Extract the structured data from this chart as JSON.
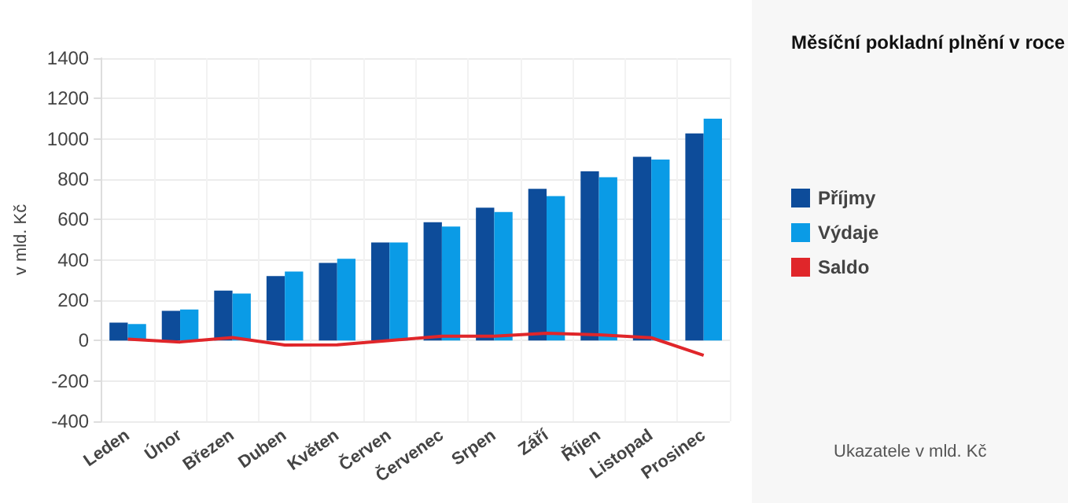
{
  "chart_data": {
    "type": "bar",
    "title": "Měsíční pokladní plnění v roce",
    "ylabel": "v mld. Kč",
    "annotations": [
      "Ukazatele v mld. Kč"
    ],
    "categories": [
      "Leden",
      "Únor",
      "Březen",
      "Duben",
      "Květen",
      "Červen",
      "Červenec",
      "Srpen",
      "Září",
      "Říjen",
      "Listopad",
      "Prosinec"
    ],
    "series": [
      {
        "name": "Příjmy",
        "color": "#0d4c9a",
        "values": [
          89,
          147,
          248,
          320,
          385,
          486,
          587,
          659,
          752,
          839,
          911,
          1027
        ]
      },
      {
        "name": "Výdaje",
        "color": "#0a9be6",
        "values": [
          82,
          154,
          233,
          342,
          406,
          486,
          565,
          637,
          716,
          810,
          897,
          1100
        ]
      },
      {
        "name": "Saldo",
        "type": "line",
        "color": "#e0262a",
        "values": [
          7,
          -7,
          15,
          -22,
          -21,
          0,
          22,
          22,
          36,
          29,
          14,
          -73
        ]
      }
    ],
    "ylim": [
      -400,
      1400
    ],
    "yticks": [
      -400,
      -200,
      0,
      200,
      400,
      600,
      800,
      1000,
      1200,
      1400
    ],
    "grid": true,
    "legend": "right",
    "marker": "none"
  }
}
